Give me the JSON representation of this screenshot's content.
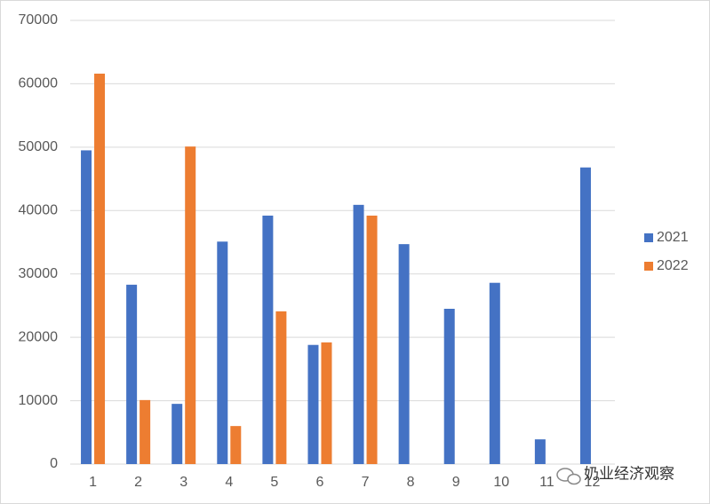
{
  "chart_data": {
    "type": "bar",
    "categories": [
      "1",
      "2",
      "3",
      "4",
      "5",
      "6",
      "7",
      "8",
      "9",
      "10",
      "11",
      "12"
    ],
    "series": [
      {
        "name": "2021",
        "color": "#4472c4",
        "values": [
          49500,
          28300,
          9500,
          35100,
          39200,
          18800,
          40900,
          34700,
          24500,
          28600,
          3900,
          46800
        ]
      },
      {
        "name": "2022",
        "color": "#ed7d31",
        "values": [
          61600,
          10100,
          50100,
          6000,
          24100,
          19200,
          39200,
          null,
          null,
          null,
          null,
          null
        ]
      }
    ],
    "ylim": [
      0,
      70000
    ],
    "yticks": [
      0,
      10000,
      20000,
      30000,
      40000,
      50000,
      60000,
      70000
    ],
    "grid": true,
    "legend": "right",
    "watermark": "奶业经济观察"
  }
}
